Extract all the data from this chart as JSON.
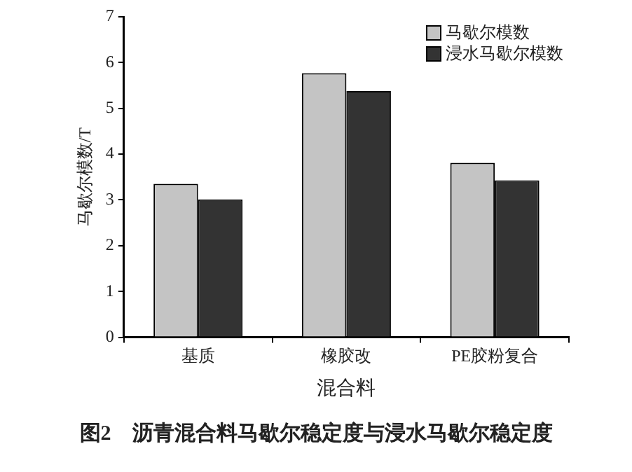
{
  "chart_data": {
    "type": "bar",
    "xlabel": "混合料",
    "ylabel": "马歇尔模数/T",
    "categories": [
      "基质",
      "橡胶改",
      "PE胶粉复合"
    ],
    "series": [
      {
        "name": "马歇尔模数",
        "color": "#c4c4c4",
        "values": [
          3.35,
          5.77,
          3.81
        ]
      },
      {
        "name": "浸水马歇尔模数",
        "color": "#333333",
        "values": [
          3.01,
          5.38,
          3.43
        ]
      }
    ],
    "ylim": [
      0,
      7
    ],
    "yticks": [
      0,
      1,
      2,
      3,
      4,
      5,
      6,
      7
    ],
    "legend": "top right",
    "annotations": [
      "图2　沥青混合料马歇尔稳定度与浸水马歇尔稳定度"
    ]
  }
}
